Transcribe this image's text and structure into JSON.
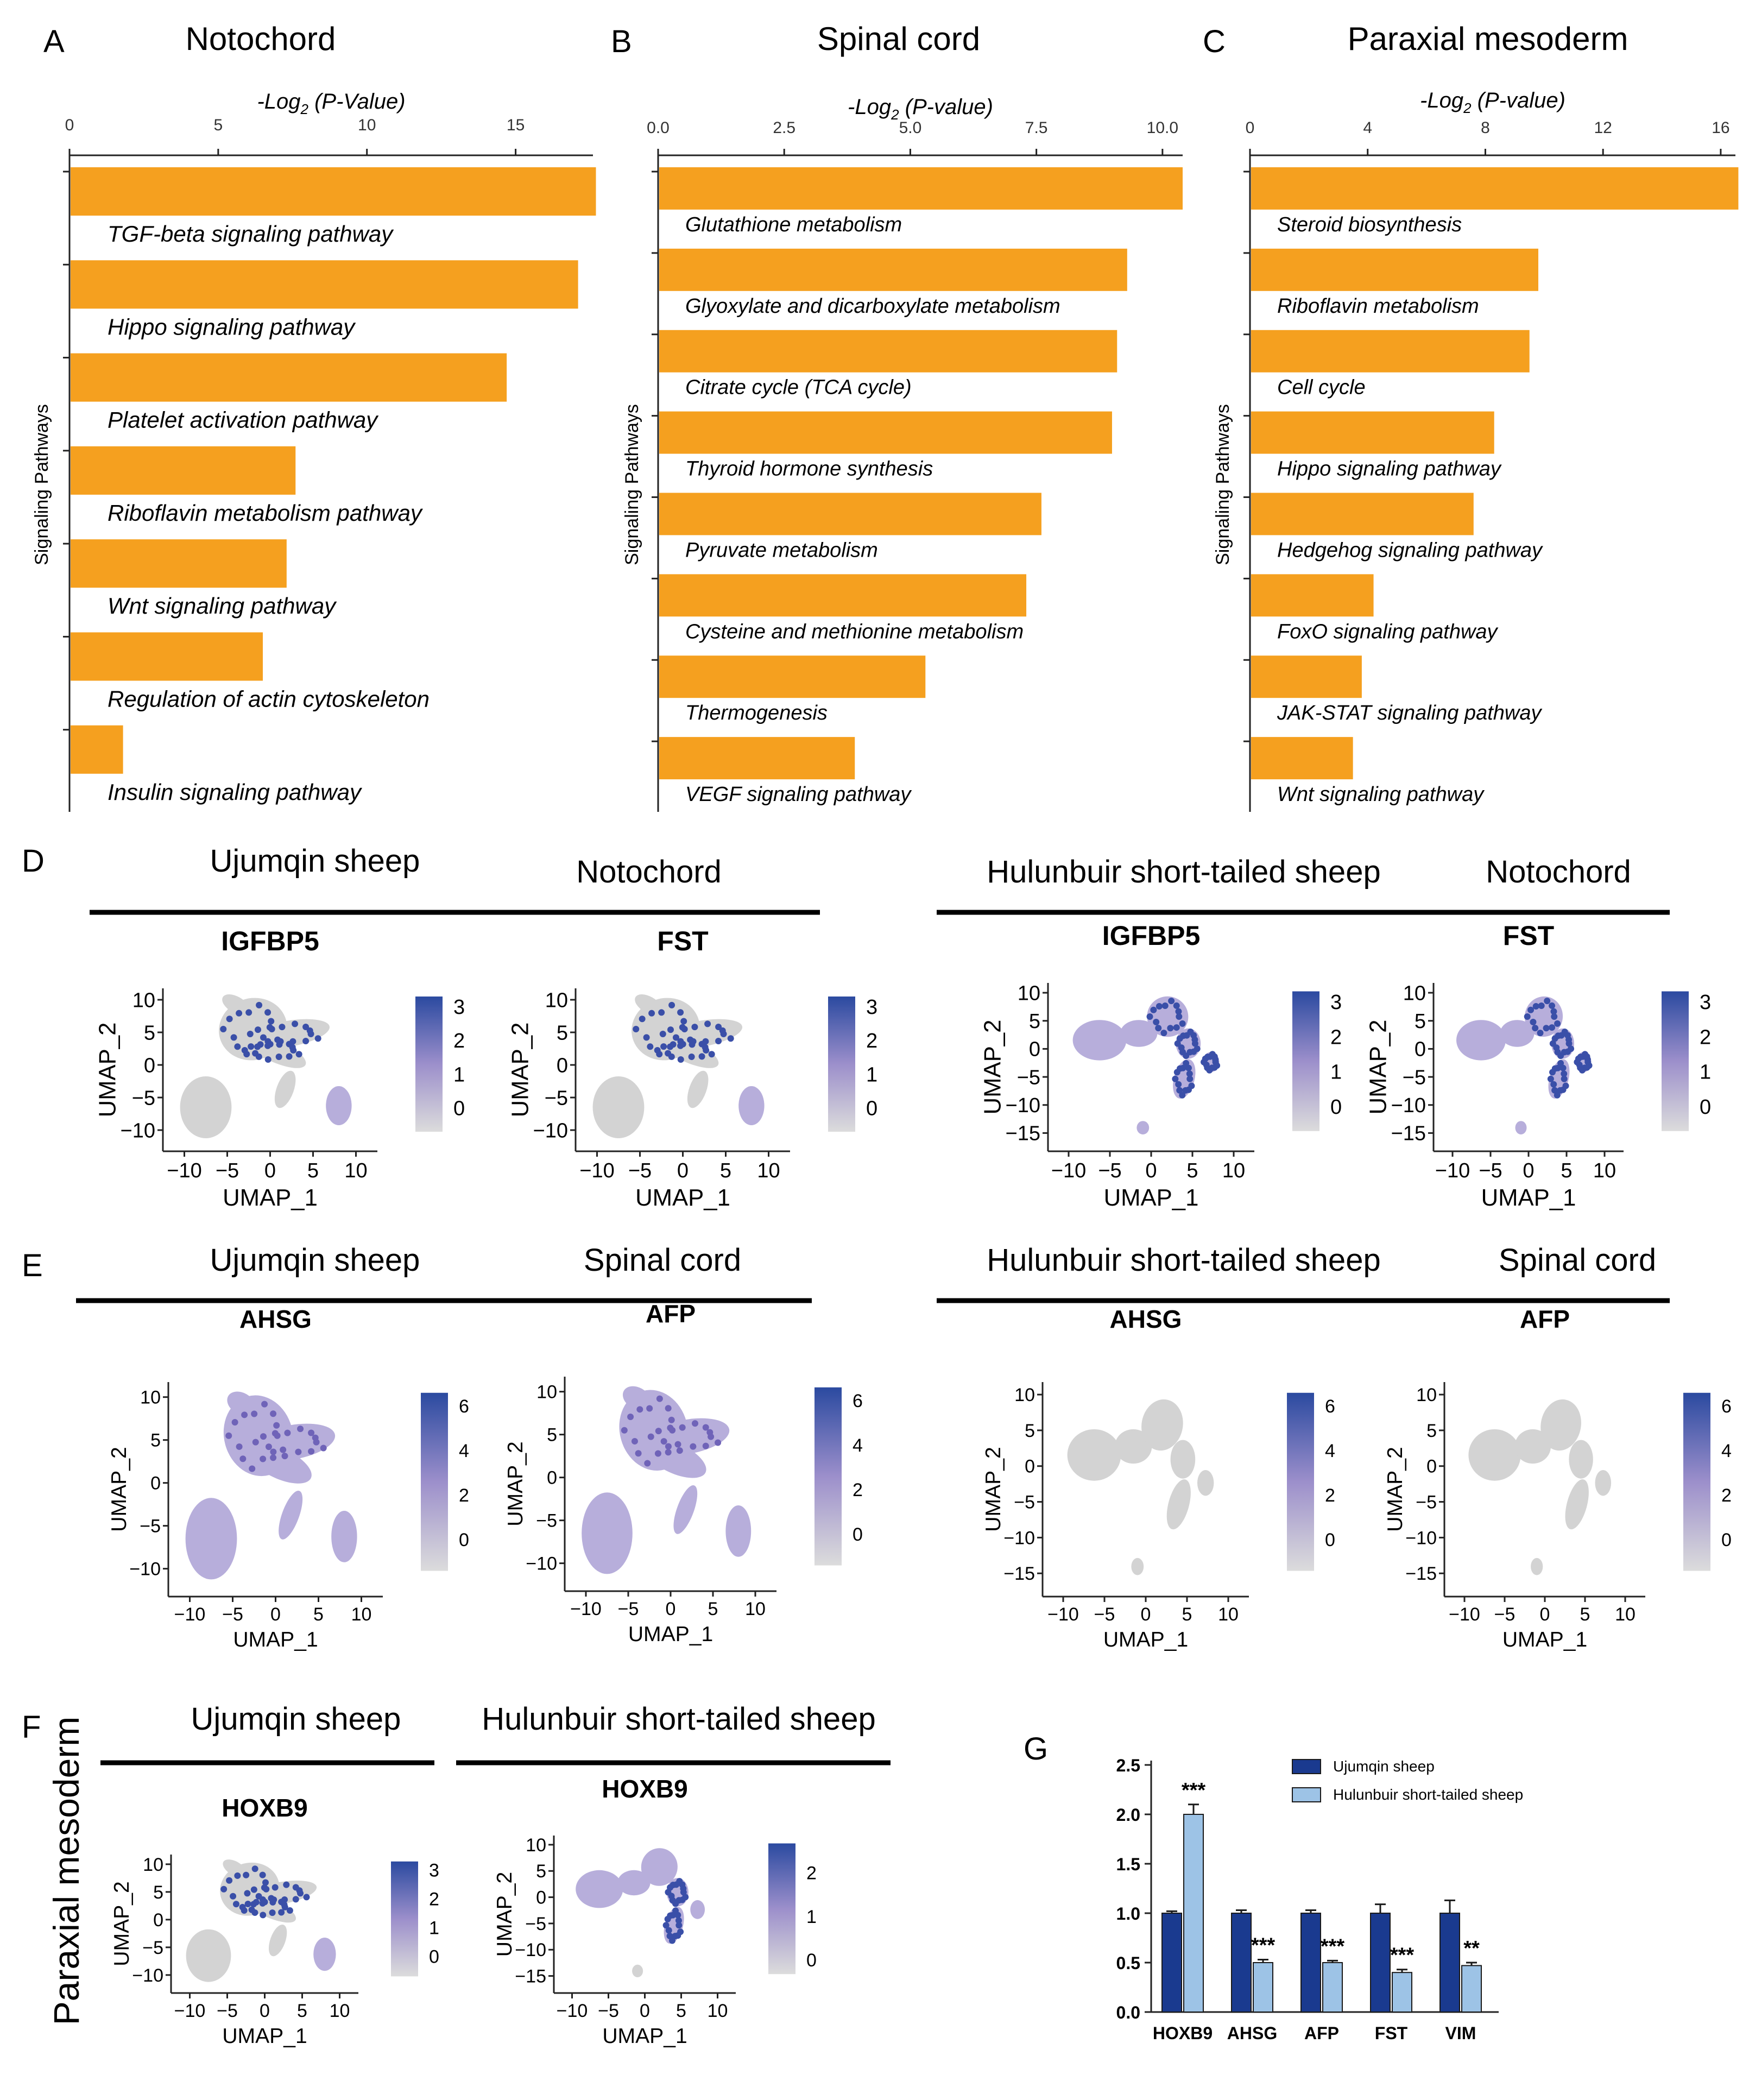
{
  "colors": {
    "bar": "#F5A01F",
    "dark_blue": "#1A3A8F",
    "light_blue": "#9DC3E6",
    "umap_grey": "#D3D3D3",
    "umap_high": "#2B4AA0",
    "axis": "#222222"
  },
  "panels_top": [
    {
      "letter": "A",
      "title": "Notochord",
      "chart_data": {
        "type": "bar",
        "orientation": "horizontal",
        "title": "Notochord",
        "xlabel_prefix": "-Log",
        "xlabel_sub": "2",
        "xlabel_suffix": " (P-Value)",
        "ylabel": "Signaling Pathways",
        "xlim": [
          0,
          17.6
        ],
        "xticks": [
          0,
          5,
          10,
          15
        ],
        "xtick_labels": [
          "0",
          "5",
          "10",
          "15"
        ],
        "categories": [
          "TGF-beta signaling pathway",
          "Hippo signaling pathway",
          "Platelet activation pathway",
          "Riboflavin metabolism pathway",
          "Wnt signaling pathway",
          "Regulation of actin cytoskeleton",
          "Insulin signaling pathway"
        ],
        "values": [
          17.7,
          17.1,
          14.7,
          7.6,
          7.3,
          6.5,
          1.8
        ]
      }
    },
    {
      "letter": "B",
      "title": "Spinal cord",
      "chart_data": {
        "type": "bar",
        "orientation": "horizontal",
        "title": "Spinal cord",
        "xlabel_prefix": "-Log",
        "xlabel_sub": "2",
        "xlabel_suffix": " (P-value)",
        "ylabel": "Signaling Pathways",
        "xlim": [
          0,
          10.4
        ],
        "xticks": [
          0,
          2.5,
          5,
          7.5,
          10
        ],
        "xtick_labels": [
          "0.0",
          "2.5",
          "5.0",
          "7.5",
          "10.0"
        ],
        "categories": [
          "Glutathione metabolism",
          "Glyoxylate and dicarboxylate metabolism",
          "Citrate cycle (TCA cycle)",
          "Thyroid hormone synthesis",
          "Pyruvate metabolism",
          "Cysteine and methionine metabolism",
          "Thermogenesis",
          "VEGF signaling pathway"
        ],
        "values": [
          10.4,
          9.3,
          9.1,
          9.0,
          7.6,
          7.3,
          5.3,
          3.9
        ]
      }
    },
    {
      "letter": "C",
      "title": "Paraxial mesoderm",
      "chart_data": {
        "type": "bar",
        "orientation": "horizontal",
        "title": "Paraxial mesoderm",
        "xlabel_prefix": "-Log",
        "xlabel_sub": "2",
        "xlabel_suffix": " (P-value)",
        "ylabel": "Signaling Pathways",
        "xlim": [
          0,
          16.5
        ],
        "xticks": [
          0,
          4,
          8,
          12,
          16
        ],
        "xtick_labels": [
          "0",
          "4",
          "8",
          "12",
          "16"
        ],
        "categories": [
          "Steroid biosynthesis",
          "Riboflavin metabolism",
          "Cell cycle",
          "Hippo signaling pathway",
          "Hedgehog signaling pathway",
          "FoxO signaling pathway",
          "JAK-STAT signaling pathway",
          "Wnt signaling pathway"
        ],
        "values": [
          16.6,
          9.8,
          9.5,
          8.3,
          7.6,
          4.2,
          3.8,
          3.5
        ]
      }
    }
  ],
  "row_d": {
    "letter": "D",
    "groups": [
      {
        "sheep": "Ujumqin sheep",
        "tissue": "Notochord"
      },
      {
        "sheep": "Hulunbuir short-tailed sheep",
        "tissue": "Notochord"
      }
    ],
    "plots": [
      {
        "gene": "IGFBP5",
        "type": "u",
        "pattern": "trunk",
        "scale_ticks": [
          "3",
          "2",
          "1",
          "0"
        ],
        "xticks": [
          "−10",
          "−5",
          "0",
          "5",
          "10"
        ],
        "yticks": [
          "10",
          "5",
          "0",
          "−5",
          "−10"
        ],
        "xlabel": "UMAP_1",
        "ylabel": "UMAP_2"
      },
      {
        "gene": "FST",
        "type": "u",
        "pattern": "trunk",
        "scale_ticks": [
          "3",
          "2",
          "1",
          "0"
        ],
        "xticks": [
          "−10",
          "−5",
          "0",
          "5",
          "10"
        ],
        "yticks": [
          "10",
          "5",
          "0",
          "−5",
          "−10"
        ],
        "xlabel": "UMAP_1",
        "ylabel": "UMAP_2"
      },
      {
        "gene": "IGFBP5",
        "type": "h",
        "pattern": "wide",
        "scale_ticks": [
          "3",
          "2",
          "1",
          "0"
        ],
        "xticks": [
          "−10",
          "−5",
          "0",
          "5",
          "10"
        ],
        "yticks": [
          "10",
          "5",
          "0",
          "−5",
          "−10",
          "−15"
        ],
        "xlabel": "UMAP_1",
        "ylabel": "UMAP_2"
      },
      {
        "gene": "FST",
        "type": "h",
        "pattern": "wide",
        "scale_ticks": [
          "3",
          "2",
          "1",
          "0"
        ],
        "xticks": [
          "−10",
          "−5",
          "0",
          "5",
          "10"
        ],
        "yticks": [
          "10",
          "5",
          "0",
          "−5",
          "−10",
          "−15"
        ],
        "xlabel": "UMAP_1",
        "ylabel": "UMAP_2"
      }
    ]
  },
  "row_e": {
    "letter": "E",
    "groups": [
      {
        "sheep": "Ujumqin sheep",
        "tissue": "Spinal cord"
      },
      {
        "sheep": "Hulunbuir short-tailed sheep",
        "tissue": "Spinal cord"
      }
    ],
    "plots": [
      {
        "gene": "AHSG",
        "type": "u",
        "pattern": "all",
        "scale_ticks": [
          "6",
          "4",
          "2",
          "0"
        ],
        "xticks": [
          "−10",
          "−5",
          "0",
          "5",
          "10"
        ],
        "yticks": [
          "10",
          "5",
          "0",
          "−5",
          "−10"
        ],
        "xlabel": "UMAP_1",
        "ylabel": "UMAP_2"
      },
      {
        "gene": "AFP",
        "type": "u",
        "pattern": "all",
        "scale_ticks": [
          "6",
          "4",
          "2",
          "0"
        ],
        "xticks": [
          "−10",
          "−5",
          "0",
          "5",
          "10"
        ],
        "yticks": [
          "10",
          "5",
          "0",
          "−5",
          "−10"
        ],
        "xlabel": "UMAP_1",
        "ylabel": "UMAP_2"
      },
      {
        "gene": "AHSG",
        "type": "h",
        "pattern": "none",
        "scale_ticks": [
          "6",
          "4",
          "2",
          "0"
        ],
        "xticks": [
          "−10",
          "−5",
          "0",
          "5",
          "10"
        ],
        "yticks": [
          "10",
          "5",
          "0",
          "−5",
          "−10",
          "−15"
        ],
        "xlabel": "UMAP_1",
        "ylabel": "UMAP_2"
      },
      {
        "gene": "AFP",
        "type": "h",
        "pattern": "none",
        "scale_ticks": [
          "6",
          "4",
          "2",
          "0"
        ],
        "xticks": [
          "−10",
          "−5",
          "0",
          "5",
          "10"
        ],
        "yticks": [
          "10",
          "5",
          "0",
          "−5",
          "−10",
          "−15"
        ],
        "xlabel": "UMAP_1",
        "ylabel": "UMAP_2"
      }
    ]
  },
  "row_f": {
    "letter": "F",
    "side_label": "Paraxial mesoderm",
    "groups": [
      {
        "sheep": "Ujumqin sheep"
      },
      {
        "sheep": "Hulunbuir short-tailed sheep"
      }
    ],
    "plots": [
      {
        "gene": "HOXB9",
        "type": "u",
        "pattern": "trunk",
        "scale_ticks": [
          "3",
          "2",
          "1",
          "0"
        ],
        "xticks": [
          "−10",
          "−5",
          "0",
          "5",
          "10"
        ],
        "yticks": [
          "10",
          "5",
          "0",
          "−5",
          "−10"
        ],
        "xlabel": "UMAP_1",
        "ylabel": "UMAP_2"
      },
      {
        "gene": "HOXB9",
        "type": "h",
        "pattern": "center",
        "scale_ticks": [
          "2",
          "1",
          "0"
        ],
        "xticks": [
          "−10",
          "−5",
          "0",
          "5",
          "10"
        ],
        "yticks": [
          "10",
          "5",
          "0",
          "−5",
          "−10",
          "−15"
        ],
        "xlabel": "UMAP_1",
        "ylabel": "UMAP_2"
      }
    ]
  },
  "panel_g": {
    "letter": "G",
    "chart_data": {
      "type": "bar",
      "orientation": "vertical",
      "categories": [
        "HOXB9",
        "AHSG",
        "AFP",
        "FST",
        "VIM"
      ],
      "ylim": [
        0,
        2.5
      ],
      "yticks": [
        "0.0",
        "0.5",
        "1.0",
        "1.5",
        "2.0",
        "2.5"
      ],
      "series": [
        {
          "name": "Ujumqin sheep",
          "values": [
            1.0,
            1.0,
            1.0,
            1.0,
            1.0
          ],
          "errors": [
            0.02,
            0.03,
            0.03,
            0.09,
            0.13
          ]
        },
        {
          "name": "Hulunbuir short-tailed sheep",
          "values": [
            2.0,
            0.5,
            0.5,
            0.4,
            0.47
          ],
          "errors": [
            0.1,
            0.03,
            0.02,
            0.03,
            0.03
          ]
        }
      ],
      "significance": [
        "***",
        "***",
        "***",
        "***",
        "**"
      ]
    }
  }
}
